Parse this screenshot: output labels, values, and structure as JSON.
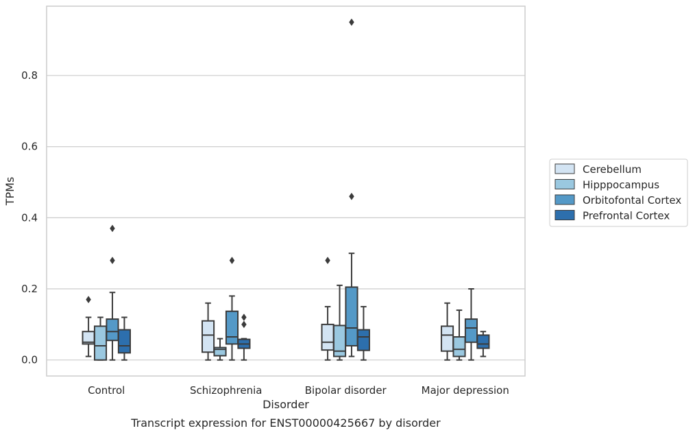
{
  "chart_data": {
    "type": "box",
    "caption": "Transcript expression for ENST00000425667 by disorder",
    "xlabel": "Disorder",
    "ylabel": "TPMs",
    "ylim": [
      -0.045,
      0.995
    ],
    "yticks": [
      0.0,
      0.2,
      0.4,
      0.6,
      0.8
    ],
    "ytick_labels": [
      "0.0",
      "0.2",
      "0.4",
      "0.6",
      "0.8"
    ],
    "grid": "horizontal",
    "legend_position": "right",
    "categories": [
      "Control",
      "Schizophrenia",
      "Bipolar disorder",
      "Major depression"
    ],
    "series": [
      {
        "name": "Cerebellum",
        "color": "#d3e4f3",
        "boxes": [
          {
            "whislo": 0.01,
            "q1": 0.045,
            "med": 0.05,
            "q3": 0.08,
            "whishi": 0.12,
            "fliers": [
              0.17
            ]
          },
          {
            "whislo": 0.0,
            "q1": 0.022,
            "med": 0.07,
            "q3": 0.11,
            "whishi": 0.16,
            "fliers": []
          },
          {
            "whislo": 0.0,
            "q1": 0.028,
            "med": 0.05,
            "q3": 0.1,
            "whishi": 0.15,
            "fliers": [
              0.28
            ]
          },
          {
            "whislo": 0.0,
            "q1": 0.025,
            "med": 0.07,
            "q3": 0.095,
            "whishi": 0.16,
            "fliers": []
          }
        ]
      },
      {
        "name": "Hipppocampus",
        "color": "#9ac8e0",
        "boxes": [
          {
            "whislo": 0.0,
            "q1": 0.0,
            "med": 0.04,
            "q3": 0.095,
            "whishi": 0.12,
            "fliers": []
          },
          {
            "whislo": 0.0,
            "q1": 0.012,
            "med": 0.03,
            "q3": 0.035,
            "whishi": 0.06,
            "fliers": []
          },
          {
            "whislo": 0.0,
            "q1": 0.01,
            "med": 0.025,
            "q3": 0.097,
            "whishi": 0.21,
            "fliers": []
          },
          {
            "whislo": 0.0,
            "q1": 0.01,
            "med": 0.03,
            "q3": 0.065,
            "whishi": 0.14,
            "fliers": []
          }
        ]
      },
      {
        "name": "Orbitofontal Cortex",
        "color": "#5499c7",
        "boxes": [
          {
            "whislo": 0.0,
            "q1": 0.055,
            "med": 0.08,
            "q3": 0.115,
            "whishi": 0.19,
            "fliers": [
              0.28,
              0.37
            ]
          },
          {
            "whislo": 0.0,
            "q1": 0.045,
            "med": 0.065,
            "q3": 0.137,
            "whishi": 0.18,
            "fliers": [
              0.28
            ]
          },
          {
            "whislo": 0.01,
            "q1": 0.04,
            "med": 0.09,
            "q3": 0.205,
            "whishi": 0.3,
            "fliers": [
              0.46,
              0.95
            ]
          },
          {
            "whislo": 0.0,
            "q1": 0.05,
            "med": 0.09,
            "q3": 0.115,
            "whishi": 0.2,
            "fliers": []
          }
        ]
      },
      {
        "name": "Prefrontal Cortex",
        "color": "#2d6fad",
        "boxes": [
          {
            "whislo": 0.0,
            "q1": 0.02,
            "med": 0.04,
            "q3": 0.085,
            "whishi": 0.12,
            "fliers": []
          },
          {
            "whislo": 0.0,
            "q1": 0.033,
            "med": 0.045,
            "q3": 0.058,
            "whishi": 0.06,
            "fliers": [
              0.1,
              0.12
            ]
          },
          {
            "whislo": 0.0,
            "q1": 0.027,
            "med": 0.065,
            "q3": 0.085,
            "whishi": 0.15,
            "fliers": []
          },
          {
            "whislo": 0.01,
            "q1": 0.033,
            "med": 0.045,
            "q3": 0.07,
            "whishi": 0.08,
            "fliers": []
          }
        ]
      }
    ]
  }
}
